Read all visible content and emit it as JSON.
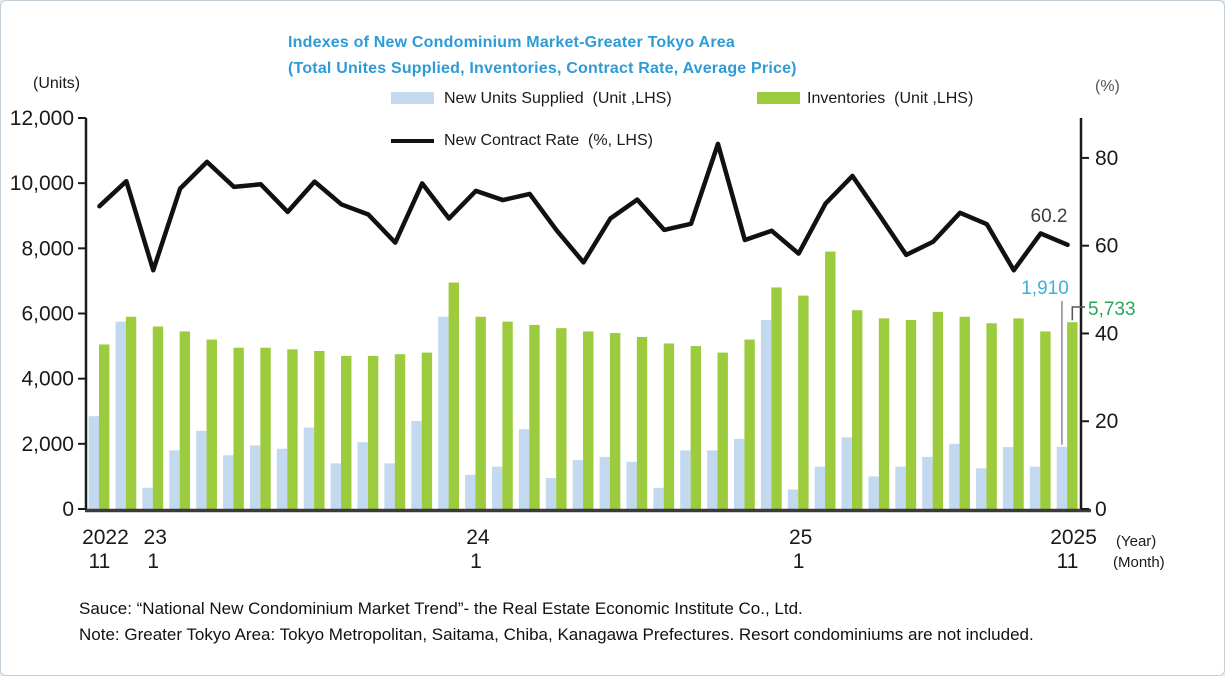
{
  "panel": {
    "background": "#ffffff",
    "border_color": "#c2cdd6"
  },
  "title": {
    "line1": "Indexes of New Condominium Market-Greater Tokyo Area",
    "line2": "(Total Unites Supplied, Inventories, Contract Rate, Average Price)",
    "color": "#2E9BD6"
  },
  "legend": {
    "supplied_label": "New Units Supplied  (Unit ,LHS)",
    "inventories_label": "Inventories  (Unit ,LHS)",
    "contract_label": "New Contract Rate  (%, LHS)",
    "supplied_color": "#C3D9F0",
    "inventories_color": "#9CCB3E",
    "contract_color": "#111111"
  },
  "corner_labels": {
    "units": "(Units)",
    "percent": "(%)",
    "year": "(Year)",
    "month": "(Month)"
  },
  "notes": {
    "source": "Sauce: “National New Condominium Market Trend”- the Real Estate Economic Institute Co., Ltd.",
    "note": "Note: Greater Tokyo Area: Tokyo Metropolitan, Saitama, Chiba, Kanagawa Prefectures. Resort condominiums are not included."
  },
  "chart_data": {
    "type": "bar",
    "title": "Indexes of New Condominium Market-Greater Tokyo Area (Total Unites Supplied, Inventories, Contract Rate, Average Price)",
    "legend_position": "top",
    "grid": false,
    "categories": [
      "2022-11",
      "2022-12",
      "2023-01",
      "2023-02",
      "2023-03",
      "2023-04",
      "2023-05",
      "2023-06",
      "2023-07",
      "2023-08",
      "2023-09",
      "2023-10",
      "2023-11",
      "2023-12",
      "2024-01",
      "2024-02",
      "2024-03",
      "2024-04",
      "2024-05",
      "2024-06",
      "2024-07",
      "2024-08",
      "2024-09",
      "2024-10",
      "2024-11",
      "2024-12",
      "2025-01",
      "2025-02",
      "2025-03",
      "2025-04",
      "2025-05",
      "2025-06",
      "2025-07",
      "2025-08",
      "2025-09",
      "2025-10",
      "2025-11"
    ],
    "series": [
      {
        "name": "New Units Supplied (Unit ,LHS)",
        "kind": "bar",
        "axis": "left",
        "color": "#C3D9F0",
        "values": [
          2850,
          5750,
          650,
          1800,
          2400,
          1650,
          1950,
          1850,
          2500,
          1400,
          2050,
          1400,
          2700,
          5900,
          1050,
          1300,
          2450,
          950,
          1500,
          1600,
          1450,
          650,
          1800,
          1800,
          2150,
          5800,
          600,
          1300,
          2200,
          1000,
          1300,
          1600,
          2000,
          1250,
          1900,
          1300,
          1910
        ]
      },
      {
        "name": "Inventories (Unit ,LHS)",
        "kind": "bar",
        "axis": "left",
        "color": "#9CCB3E",
        "values": [
          5050,
          5900,
          5600,
          5450,
          5200,
          4950,
          4950,
          4900,
          4850,
          4700,
          4700,
          4750,
          4800,
          6950,
          5900,
          5750,
          5650,
          5550,
          5450,
          5400,
          5280,
          5080,
          5000,
          4800,
          5200,
          6800,
          6550,
          7900,
          6100,
          5850,
          5800,
          6050,
          5900,
          5700,
          5850,
          5450,
          5733
        ]
      },
      {
        "name": "New Contract Rate (%, LHS)",
        "kind": "line",
        "axis": "right",
        "color": "#111111",
        "values": [
          69.0,
          74.7,
          54.4,
          73.0,
          79.1,
          73.4,
          74.0,
          67.7,
          74.6,
          69.4,
          67.1,
          60.7,
          74.2,
          66.2,
          72.5,
          70.4,
          71.8,
          63.5,
          56.2,
          66.2,
          70.5,
          63.6,
          65.0,
          83.2,
          61.3,
          63.4,
          58.2,
          69.6,
          75.9,
          67.0,
          57.9,
          60.9,
          67.5,
          64.9,
          54.4,
          62.8,
          60.2
        ]
      }
    ],
    "left_axis": {
      "label": "(Units)",
      "ticks": [
        0,
        2000,
        4000,
        6000,
        8000,
        10000,
        12000
      ],
      "range": [
        0,
        12000
      ]
    },
    "right_axis": {
      "label": "(%)",
      "ticks": [
        0,
        20,
        40,
        60,
        80
      ],
      "range": [
        0,
        89.1
      ]
    },
    "x_axis": {
      "year_label": "(Year)",
      "month_label": "(Month)",
      "tick_positions": [
        {
          "index": 0,
          "year": "2022",
          "month": "11"
        },
        {
          "index": 2,
          "year": "23",
          "month": "1"
        },
        {
          "index": 14,
          "year": "24",
          "month": "1"
        },
        {
          "index": 26,
          "year": "25",
          "month": "1"
        },
        {
          "index": 36,
          "year": "2025",
          "month": "11"
        }
      ]
    },
    "annotations": [
      {
        "text": "60.2",
        "target": "contract_rate_last",
        "color": "#3d3d3d"
      },
      {
        "text": "1,910",
        "target": "supplied_last",
        "color": "#3FAEE0"
      },
      {
        "text": "5,733",
        "target": "inventory_last",
        "color": "#27A65A"
      }
    ]
  }
}
